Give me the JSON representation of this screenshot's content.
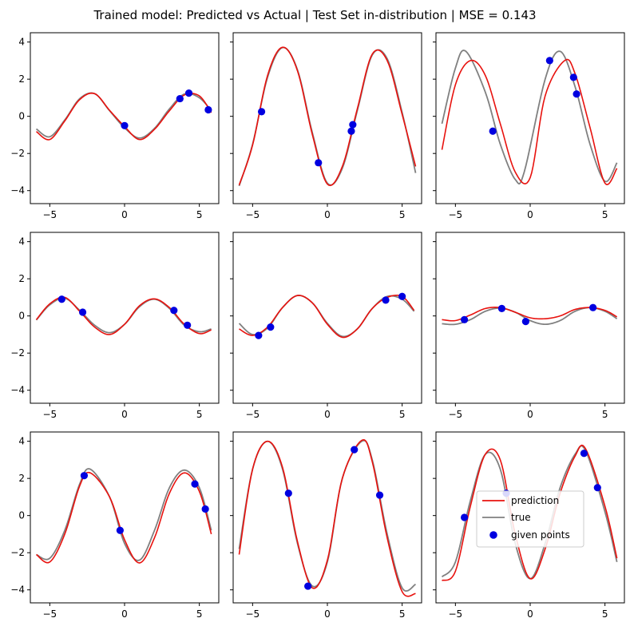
{
  "figure": {
    "title": "Trained model: Predicted vs Actual | Test Set in-distribution | MSE = 0.143"
  },
  "legend": {
    "entries": [
      {
        "label": "prediction",
        "kind": "line",
        "color": "#e8120e"
      },
      {
        "label": "true",
        "kind": "line",
        "color": "#808080"
      },
      {
        "label": "given points",
        "kind": "marker",
        "color": "#0000e0"
      }
    ],
    "placement": "inside subplot 9, center"
  },
  "colors": {
    "prediction": "#e8120e",
    "true": "#808080",
    "points": "#0000e0"
  },
  "chart_data": [
    {
      "type": "line",
      "panel": 1,
      "xlim": [
        -6.3,
        6.3
      ],
      "ylim": [
        -4.7,
        4.5
      ],
      "xticks": [
        -5,
        0,
        5
      ],
      "yticks": [
        -4,
        -2,
        0,
        2,
        4
      ],
      "grid": false,
      "series": [
        {
          "name": "true",
          "x": [
            -5.9,
            -5,
            -4,
            -3,
            -2,
            -1,
            0,
            1,
            2,
            3,
            4,
            5,
            5.8
          ],
          "y": [
            -0.68,
            -1.1,
            -0.2,
            0.95,
            1.22,
            0.3,
            -0.62,
            -1.17,
            -0.65,
            0.4,
            1.2,
            1.0,
            0.3
          ]
        },
        {
          "name": "prediction",
          "x": [
            -5.9,
            -5,
            -4,
            -3,
            -2,
            -1,
            0,
            1,
            2,
            3,
            4,
            5,
            5.8
          ],
          "y": [
            -0.82,
            -1.25,
            -0.25,
            0.9,
            1.22,
            0.32,
            -0.55,
            -1.25,
            -0.7,
            0.3,
            1.15,
            1.1,
            0.2
          ]
        },
        {
          "name": "given points",
          "x": [
            0.0,
            3.7,
            4.3,
            5.6
          ],
          "y": [
            -0.5,
            0.95,
            1.25,
            0.35
          ]
        }
      ]
    },
    {
      "type": "line",
      "panel": 2,
      "xlim": [
        -6.3,
        6.3
      ],
      "ylim": [
        -4.7,
        4.5
      ],
      "xticks": [
        -5,
        0,
        5
      ],
      "yticks": [
        -4,
        -2,
        0,
        2,
        4
      ],
      "grid": false,
      "series": [
        {
          "name": "true",
          "x": [
            -5.9,
            -5,
            -4,
            -3,
            -2,
            -1,
            0,
            1,
            2,
            3,
            4,
            5,
            5.9
          ],
          "y": [
            -3.75,
            -1.5,
            2.1,
            3.7,
            2.5,
            -0.9,
            -3.6,
            -2.8,
            0.3,
            3.3,
            3.1,
            0.2,
            -3.05
          ]
        },
        {
          "name": "prediction",
          "x": [
            -5.9,
            -5,
            -4,
            -3,
            -2,
            -1,
            0,
            1,
            2,
            3,
            4,
            5,
            5.9
          ],
          "y": [
            -3.7,
            -1.55,
            2.2,
            3.72,
            2.45,
            -1.0,
            -3.65,
            -2.7,
            0.4,
            3.35,
            3.0,
            0.1,
            -2.7
          ]
        },
        {
          "name": "given points",
          "x": [
            -4.4,
            -0.6,
            1.6,
            1.7
          ],
          "y": [
            0.25,
            -2.5,
            -0.8,
            -0.45
          ]
        }
      ]
    },
    {
      "type": "line",
      "panel": 3,
      "xlim": [
        -6.3,
        6.3
      ],
      "ylim": [
        -4.7,
        4.5
      ],
      "xticks": [
        -5,
        0,
        5
      ],
      "yticks": [
        -4,
        -2,
        0,
        2,
        4
      ],
      "grid": false,
      "series": [
        {
          "name": "true",
          "x": [
            -5.9,
            -5,
            -4.3,
            -3,
            -2,
            -1,
            -0.4,
            1,
            2,
            3,
            4,
            5,
            5.8
          ],
          "y": [
            -0.4,
            2.6,
            3.5,
            1.3,
            -1.5,
            -3.4,
            -3.0,
            2.0,
            3.5,
            1.6,
            -1.5,
            -3.5,
            -2.5
          ]
        },
        {
          "name": "prediction",
          "x": [
            -5.9,
            -5,
            -4,
            -3,
            -2,
            -1,
            0,
            1,
            2.3,
            3,
            4,
            5,
            5.8
          ],
          "y": [
            -1.8,
            1.7,
            3.0,
            2.2,
            -0.4,
            -3.0,
            -3.3,
            1.1,
            3.0,
            2.3,
            -0.6,
            -3.6,
            -2.8
          ]
        },
        {
          "name": "given points",
          "x": [
            -2.5,
            1.3,
            2.9,
            3.1
          ],
          "y": [
            -0.8,
            3.0,
            2.1,
            1.2
          ]
        }
      ]
    },
    {
      "type": "line",
      "panel": 4,
      "xlim": [
        -6.3,
        6.3
      ],
      "ylim": [
        -4.7,
        4.5
      ],
      "xticks": [
        -5,
        0,
        5
      ],
      "yticks": [
        -4,
        -2,
        0,
        2,
        4
      ],
      "grid": false,
      "series": [
        {
          "name": "true",
          "x": [
            -5.9,
            -5,
            -4,
            -3,
            -2,
            -1,
            0,
            1,
            2,
            3,
            4,
            5,
            5.8
          ],
          "y": [
            -0.22,
            0.6,
            0.95,
            0.3,
            -0.5,
            -0.9,
            -0.45,
            0.5,
            0.9,
            0.4,
            -0.5,
            -0.85,
            -0.7
          ]
        },
        {
          "name": "prediction",
          "x": [
            -5.9,
            -5,
            -4,
            -3,
            -2,
            -1,
            0,
            1,
            2,
            3,
            4,
            5,
            5.8
          ],
          "y": [
            -0.2,
            0.65,
            1.0,
            0.25,
            -0.6,
            -1.0,
            -0.45,
            0.55,
            0.92,
            0.45,
            -0.45,
            -0.95,
            -0.75
          ]
        },
        {
          "name": "given points",
          "x": [
            -4.2,
            -2.8,
            3.3,
            4.2
          ],
          "y": [
            0.9,
            0.2,
            0.3,
            -0.5
          ]
        }
      ]
    },
    {
      "type": "line",
      "panel": 5,
      "xlim": [
        -6.3,
        6.3
      ],
      "ylim": [
        -4.7,
        4.5
      ],
      "xticks": [
        -5,
        0,
        5
      ],
      "yticks": [
        -4,
        -2,
        0,
        2,
        4
      ],
      "grid": false,
      "series": [
        {
          "name": "true",
          "x": [
            -5.9,
            -5,
            -4,
            -3,
            -2,
            -1,
            0,
            1,
            2,
            3,
            4,
            5,
            5.8
          ],
          "y": [
            -0.4,
            -1.0,
            -0.65,
            0.45,
            1.1,
            0.7,
            -0.4,
            -1.1,
            -0.7,
            0.4,
            1.05,
            0.9,
            0.25
          ]
        },
        {
          "name": "prediction",
          "x": [
            -5.9,
            -5,
            -4,
            -3,
            -2,
            -1,
            0,
            1,
            2,
            3,
            4,
            5,
            5.8
          ],
          "y": [
            -0.7,
            -1.05,
            -0.6,
            0.45,
            1.1,
            0.7,
            -0.45,
            -1.15,
            -0.7,
            0.4,
            1.0,
            1.05,
            0.3
          ]
        },
        {
          "name": "given points",
          "x": [
            -4.6,
            -3.8,
            3.9,
            5.0
          ],
          "y": [
            -1.05,
            -0.6,
            0.85,
            1.05
          ]
        }
      ]
    },
    {
      "type": "line",
      "panel": 6,
      "xlim": [
        -6.3,
        6.3
      ],
      "ylim": [
        -4.7,
        4.5
      ],
      "xticks": [
        -5,
        0,
        5
      ],
      "yticks": [
        -4,
        -2,
        0,
        2,
        4
      ],
      "grid": false,
      "series": [
        {
          "name": "true",
          "x": [
            -5.9,
            -5,
            -4,
            -3,
            -2,
            -1,
            0,
            1,
            2,
            3,
            4,
            5,
            5.8
          ],
          "y": [
            -0.42,
            -0.45,
            -0.2,
            0.25,
            0.42,
            0.2,
            -0.25,
            -0.45,
            -0.25,
            0.25,
            0.45,
            0.25,
            -0.15
          ]
        },
        {
          "name": "prediction",
          "x": [
            -5.9,
            -5,
            -4,
            -3,
            -2,
            -1,
            0,
            1,
            2,
            3,
            4,
            5,
            5.8
          ],
          "y": [
            -0.2,
            -0.25,
            0.05,
            0.4,
            0.45,
            0.2,
            -0.1,
            -0.15,
            0.0,
            0.35,
            0.45,
            0.3,
            -0.05
          ]
        },
        {
          "name": "given points",
          "x": [
            -4.4,
            -1.9,
            -0.3,
            4.2
          ],
          "y": [
            -0.2,
            0.4,
            -0.3,
            0.45
          ]
        }
      ]
    },
    {
      "type": "line",
      "panel": 7,
      "xlim": [
        -6.3,
        6.3
      ],
      "ylim": [
        -4.7,
        4.5
      ],
      "xticks": [
        -5,
        0,
        5
      ],
      "yticks": [
        -4,
        -2,
        0,
        2,
        4
      ],
      "grid": false,
      "series": [
        {
          "name": "true",
          "x": [
            -5.9,
            -5,
            -4,
            -3,
            -2.3,
            -1,
            0,
            1,
            2,
            3,
            4,
            5,
            5.8
          ],
          "y": [
            -2.1,
            -2.3,
            -0.8,
            1.7,
            2.5,
            1.0,
            -1.5,
            -2.4,
            -0.8,
            1.5,
            2.45,
            1.5,
            -0.8
          ]
        },
        {
          "name": "prediction",
          "x": [
            -5.9,
            -5,
            -4,
            -3,
            -2.3,
            -1,
            0,
            1,
            2,
            3,
            4,
            5,
            5.8
          ],
          "y": [
            -2.1,
            -2.5,
            -1.0,
            1.6,
            2.3,
            1.0,
            -1.3,
            -2.55,
            -1.2,
            1.2,
            2.3,
            1.3,
            -1.0
          ]
        },
        {
          "name": "given points",
          "x": [
            -2.7,
            -0.3,
            4.7,
            5.4
          ],
          "y": [
            2.15,
            -0.8,
            1.7,
            0.35
          ]
        }
      ]
    },
    {
      "type": "line",
      "panel": 8,
      "xlim": [
        -6.3,
        6.3
      ],
      "ylim": [
        -4.7,
        4.5
      ],
      "xticks": [
        -5,
        0,
        5
      ],
      "yticks": [
        -4,
        -2,
        0,
        2,
        4
      ],
      "grid": false,
      "series": [
        {
          "name": "true",
          "x": [
            -5.9,
            -5,
            -4,
            -3,
            -2,
            -1,
            0,
            1,
            2.3,
            3,
            4,
            5,
            5.9
          ],
          "y": [
            -1.8,
            2.5,
            4.0,
            2.5,
            -1.5,
            -3.8,
            -2.5,
            2.0,
            4.0,
            3.0,
            -1.0,
            -3.9,
            -3.7
          ]
        },
        {
          "name": "prediction",
          "x": [
            -5.9,
            -5,
            -4,
            -3,
            -2,
            -1,
            0,
            1,
            2.3,
            3,
            4,
            5,
            5.9
          ],
          "y": [
            -2.1,
            2.5,
            4.0,
            2.6,
            -1.4,
            -3.9,
            -2.4,
            2.0,
            4.05,
            2.9,
            -1.2,
            -4.1,
            -4.2
          ]
        },
        {
          "name": "given points",
          "x": [
            -2.6,
            -1.3,
            1.8,
            3.5
          ],
          "y": [
            1.2,
            -3.8,
            3.55,
            1.1
          ]
        }
      ]
    },
    {
      "type": "line",
      "panel": 9,
      "xlim": [
        -6.3,
        6.3
      ],
      "ylim": [
        -4.7,
        4.5
      ],
      "xticks": [
        -5,
        0,
        5
      ],
      "yticks": [
        -4,
        -2,
        0,
        2,
        4
      ],
      "grid": false,
      "series": [
        {
          "name": "true",
          "x": [
            -5.9,
            -5,
            -4,
            -3,
            -2,
            -1,
            0,
            1,
            2,
            3,
            3.7,
            5,
            5.8
          ],
          "y": [
            -3.3,
            -2.5,
            0.8,
            3.3,
            2.5,
            -1.5,
            -3.4,
            -1.5,
            1.5,
            3.3,
            3.5,
            0.2,
            -2.5
          ]
        },
        {
          "name": "prediction",
          "x": [
            -5.9,
            -5,
            -4,
            -3,
            -2,
            -1,
            0,
            1,
            2,
            3,
            3.7,
            5,
            5.8
          ],
          "y": [
            -3.5,
            -3.0,
            0.5,
            3.3,
            3.0,
            -1.0,
            -3.4,
            -1.8,
            1.2,
            3.2,
            3.6,
            0.5,
            -2.3
          ]
        },
        {
          "name": "given points",
          "x": [
            -4.4,
            -1.6,
            3.6,
            4.5
          ],
          "y": [
            -0.1,
            1.2,
            3.35,
            1.5
          ]
        }
      ]
    }
  ]
}
